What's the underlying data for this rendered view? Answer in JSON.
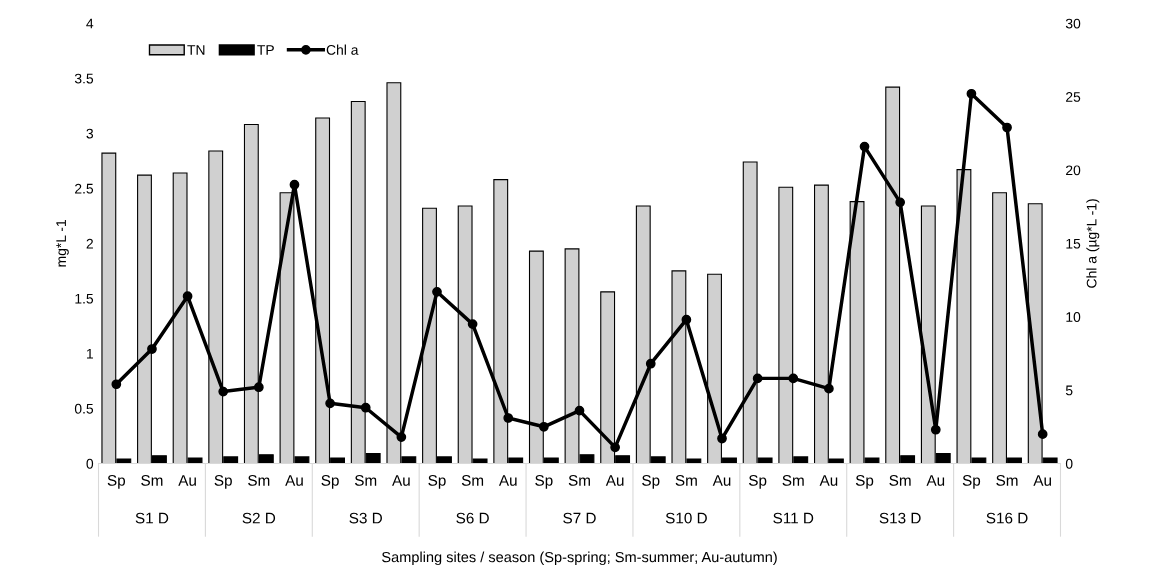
{
  "chart_data": {
    "type": "bar",
    "xlabel": "Sampling sites / season (Sp-spring; Sm-summer; Au-autumn)",
    "ylabel": "mg*L -1",
    "y2label": "Chl a (µg*L -1)",
    "categories": [
      "Sp",
      "Sm",
      "Au",
      "Sp",
      "Sm",
      "Au",
      "Sp",
      "Sm",
      "Au",
      "Sp",
      "Sm",
      "Au",
      "Sp",
      "Sm",
      "Au",
      "Sp",
      "Sm",
      "Au",
      "Sp",
      "Sm",
      "Au",
      "Sp",
      "Sm",
      "Au",
      "Sp",
      "Sm",
      "Au"
    ],
    "series": [
      {
        "name": "TN",
        "color": "#d0d0d0",
        "values": [
          2.82,
          2.62,
          2.64,
          2.84,
          3.08,
          2.46,
          3.14,
          3.29,
          3.46,
          2.32,
          2.34,
          2.58,
          1.93,
          1.95,
          1.56,
          2.34,
          1.75,
          1.72,
          2.74,
          2.51,
          2.53,
          2.38,
          3.42,
          2.34,
          2.67,
          2.46,
          2.36
        ]
      },
      {
        "name": "TP",
        "color": "#000000",
        "values": [
          0.04,
          0.07,
          0.05,
          0.06,
          0.08,
          0.06,
          0.05,
          0.09,
          0.06,
          0.06,
          0.04,
          0.05,
          0.05,
          0.08,
          0.07,
          0.06,
          0.04,
          0.05,
          0.05,
          0.06,
          0.04,
          0.05,
          0.07,
          0.09,
          0.05,
          0.05,
          0.05
        ]
      },
      {
        "name": "Chl a",
        "type": "line",
        "axis": "y2",
        "color": "#000000",
        "values": [
          5.4,
          7.8,
          11.4,
          4.9,
          5.2,
          19.0,
          4.1,
          3.8,
          1.8,
          11.7,
          9.5,
          3.1,
          2.5,
          3.6,
          1.1,
          6.8,
          9.8,
          1.7,
          5.8,
          5.8,
          5.1,
          21.6,
          17.8,
          2.3,
          25.2,
          22.9,
          2.0
        ]
      }
    ],
    "annotations": [
      "S1 D",
      "S2 D",
      "S3 D",
      "S6 D",
      "S7 D",
      "S10 D",
      "S11 D",
      "S13 D",
      "S16 D"
    ],
    "ylim": [
      0,
      4
    ],
    "yticks": [
      0,
      0.5,
      1,
      1.5,
      2,
      2.5,
      3,
      3.5,
      4
    ],
    "y2lim": [
      0,
      30
    ],
    "y2ticks": [
      0,
      5,
      10,
      15,
      20,
      25,
      30
    ],
    "legend": "top left",
    "marker": "circle",
    "line_style": "solid",
    "grid": false
  }
}
